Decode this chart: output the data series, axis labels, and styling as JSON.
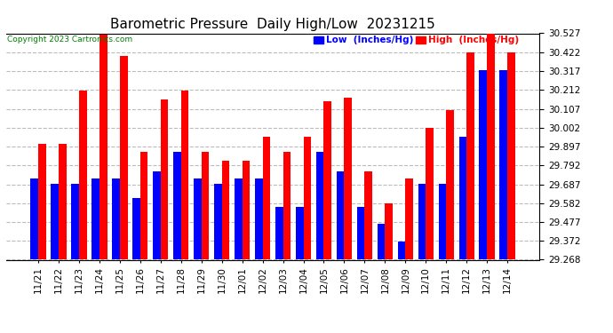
{
  "title": "Barometric Pressure  Daily High/Low  20231215",
  "copyright": "Copyright 2023 Cartronics.com",
  "legend_low": "Low  (Inches/Hg)",
  "legend_high": "High  (Inches/Hg)",
  "categories": [
    "11/21",
    "11/22",
    "11/23",
    "11/24",
    "11/25",
    "11/26",
    "11/27",
    "11/28",
    "11/29",
    "11/30",
    "12/01",
    "12/02",
    "12/03",
    "12/04",
    "12/05",
    "12/06",
    "12/07",
    "12/08",
    "12/09",
    "12/10",
    "12/11",
    "12/12",
    "12/13",
    "12/14"
  ],
  "low_values": [
    29.72,
    29.69,
    29.69,
    29.72,
    29.72,
    29.61,
    29.76,
    29.87,
    29.72,
    29.69,
    29.72,
    29.72,
    29.56,
    29.56,
    29.87,
    29.76,
    29.56,
    29.47,
    29.37,
    29.69,
    29.69,
    29.95,
    30.32,
    30.32
  ],
  "high_values": [
    29.91,
    29.91,
    30.21,
    30.52,
    30.4,
    29.87,
    30.16,
    30.21,
    29.87,
    29.82,
    29.82,
    29.95,
    29.87,
    29.95,
    30.15,
    30.17,
    29.76,
    29.58,
    29.72,
    30.0,
    30.1,
    30.42,
    30.53,
    30.42
  ],
  "ylim_min": 29.268,
  "ylim_max": 30.527,
  "yticks": [
    29.268,
    29.372,
    29.477,
    29.582,
    29.687,
    29.792,
    29.897,
    30.002,
    30.107,
    30.212,
    30.317,
    30.422,
    30.527
  ],
  "low_color": "#0000ff",
  "high_color": "#ff0000",
  "bg_color": "#ffffff",
  "grid_color": "#bbbbbb",
  "title_fontsize": 11,
  "tick_fontsize": 7.5,
  "bar_width": 0.38
}
